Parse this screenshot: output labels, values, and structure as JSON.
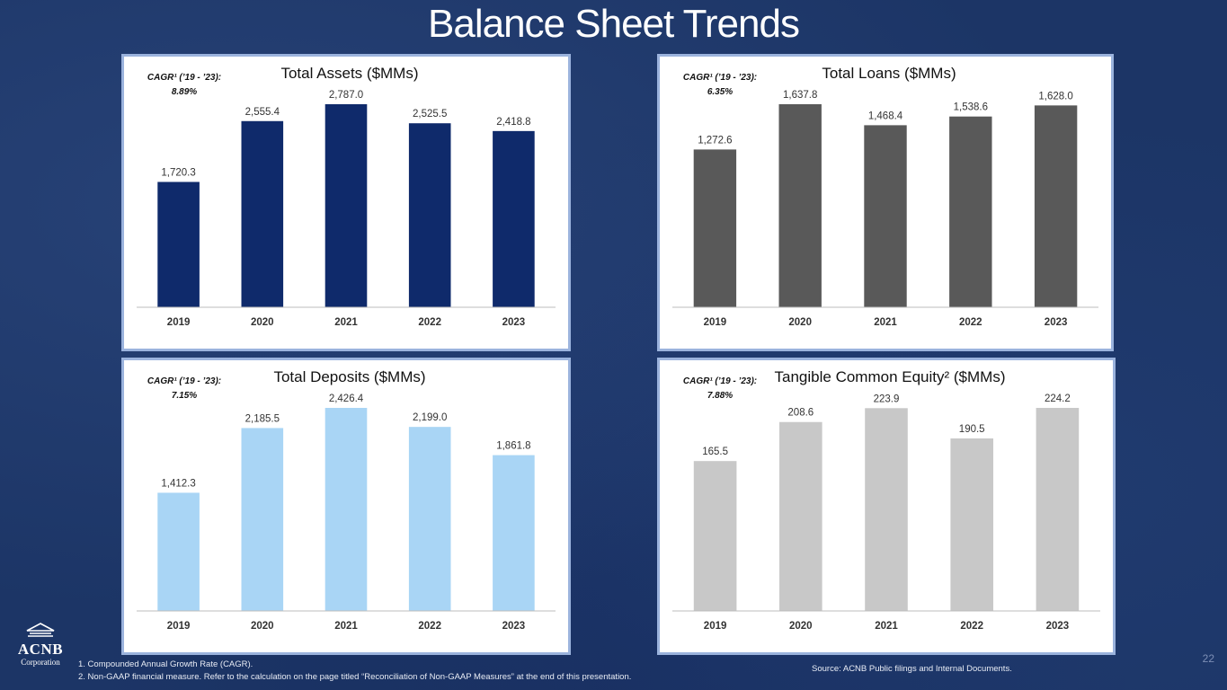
{
  "slide": {
    "title": "Balance Sheet Trends",
    "page_number": "22",
    "logo_word": "ACNB",
    "logo_sub": "Corporation",
    "footnotes": [
      "1. Compounded Annual Growth Rate (CAGR).",
      "2. Non-GAAP financial measure.  Refer to the calculation on the page titled “Reconciliation of Non-GAAP Measures” at the end of this presentation."
    ],
    "source": "Source: ACNB Public filings and Internal Documents."
  },
  "colors": {
    "assets": "#0f2a6b",
    "loans": "#595959",
    "deposits": "#a9d5f5",
    "equity": "#c8c8c8",
    "panel_border": "#9bb3dd"
  },
  "chart_data": [
    {
      "type": "bar",
      "title": "Total Assets ($MMs)",
      "cagr_label": "CAGR¹ (’19 - ’23):",
      "cagr_value": "8.89%",
      "categories": [
        "2019",
        "2020",
        "2021",
        "2022",
        "2023"
      ],
      "values": [
        1720.3,
        2555.4,
        2787.0,
        2525.5,
        2418.8
      ],
      "value_labels": [
        "1,720.3",
        "2,555.4",
        "2,787.0",
        "2,525.5",
        "2,418.8"
      ],
      "ylim": [
        0,
        2787.0
      ],
      "color": "#0f2a6b",
      "grid": false
    },
    {
      "type": "bar",
      "title": "Total Loans ($MMs)",
      "cagr_label": "CAGR¹ (’19 - ’23):",
      "cagr_value": "6.35%",
      "categories": [
        "2019",
        "2020",
        "2021",
        "2022",
        "2023"
      ],
      "values": [
        1272.6,
        1637.8,
        1468.4,
        1538.6,
        1628.0
      ],
      "value_labels": [
        "1,272.6",
        "1,637.8",
        "1,468.4",
        "1,538.6",
        "1,628.0"
      ],
      "ylim": [
        0,
        1637.8
      ],
      "color": "#595959",
      "grid": false
    },
    {
      "type": "bar",
      "title": "Total Deposits ($MMs)",
      "cagr_label": "CAGR¹ (’19 - ’23):",
      "cagr_value": "7.15%",
      "categories": [
        "2019",
        "2020",
        "2021",
        "2022",
        "2023"
      ],
      "values": [
        1412.3,
        2185.5,
        2426.4,
        2199.0,
        1861.8
      ],
      "value_labels": [
        "1,412.3",
        "2,185.5",
        "2,426.4",
        "2,199.0",
        "1,861.8"
      ],
      "ylim": [
        0,
        2426.4
      ],
      "color": "#a9d5f5",
      "grid": false
    },
    {
      "type": "bar",
      "title": "Tangible Common Equity² ($MMs)",
      "cagr_label": "CAGR¹ (’19 - ’23):",
      "cagr_value": "7.88%",
      "categories": [
        "2019",
        "2020",
        "2021",
        "2022",
        "2023"
      ],
      "values": [
        165.5,
        208.6,
        223.9,
        190.5,
        224.2
      ],
      "value_labels": [
        "165.5",
        "208.6",
        "223.9",
        "190.5",
        "224.2"
      ],
      "ylim": [
        0,
        224.2
      ],
      "color": "#c8c8c8",
      "grid": false
    }
  ]
}
